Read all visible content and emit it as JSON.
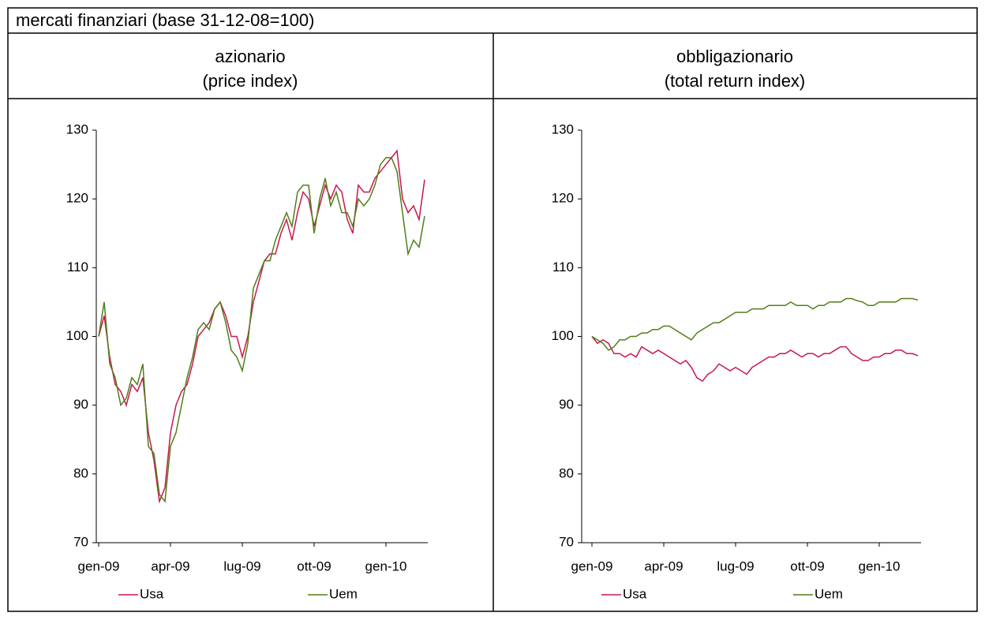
{
  "title": "mercati finanziari (base 31-12-08=100)",
  "chart_data": [
    {
      "type": "line",
      "title": "azionario",
      "subtitle": "(price index)",
      "categories": [
        "gen-09",
        null,
        null,
        null,
        null,
        null,
        null,
        null,
        null,
        null,
        null,
        null,
        null,
        "apr-09",
        null,
        null,
        null,
        null,
        null,
        null,
        null,
        null,
        null,
        null,
        null,
        null,
        "lug-09",
        null,
        null,
        null,
        null,
        null,
        null,
        null,
        null,
        null,
        null,
        null,
        null,
        "ott-09",
        null,
        null,
        null,
        null,
        null,
        null,
        null,
        null,
        null,
        null,
        null,
        null,
        "gen-10",
        null,
        null,
        null,
        null,
        null,
        null,
        null
      ],
      "ylim": [
        70,
        130
      ],
      "yticks": [
        70,
        80,
        90,
        100,
        110,
        120,
        130
      ],
      "series": [
        {
          "name": "Usa",
          "color": "#c8174f",
          "values": [
            100,
            103,
            97,
            93,
            92,
            90,
            93,
            92,
            94,
            86,
            82,
            76,
            78,
            86,
            90,
            92,
            93,
            96,
            100,
            101,
            102,
            104,
            105,
            103,
            100,
            100,
            97,
            100,
            105,
            108,
            111,
            112,
            112,
            115,
            117,
            114,
            118,
            121,
            120,
            116,
            119,
            122,
            120,
            122,
            121,
            117,
            115,
            122,
            121,
            121,
            123,
            124,
            125,
            126,
            127,
            120,
            118,
            119,
            117,
            122.8
          ]
        },
        {
          "name": "Uem",
          "color": "#4f7f17",
          "values": [
            100,
            105,
            96,
            94,
            90,
            91,
            94,
            93,
            96,
            84,
            83,
            77,
            76,
            84,
            86,
            90,
            94,
            97,
            101,
            102,
            101,
            104,
            105,
            102,
            98,
            97,
            95,
            99,
            107,
            109,
            111,
            111,
            114,
            116,
            118,
            116,
            121,
            122,
            122,
            115,
            120,
            123,
            119,
            121,
            118,
            118,
            116,
            120,
            119,
            120,
            122,
            125,
            126,
            126,
            124,
            118,
            112,
            114,
            113,
            117.5
          ]
        }
      ]
    },
    {
      "type": "line",
      "title": "obbligazionario",
      "subtitle": "(total return index)",
      "categories": [
        "gen-09",
        null,
        null,
        null,
        null,
        null,
        null,
        null,
        null,
        null,
        null,
        null,
        null,
        "apr-09",
        null,
        null,
        null,
        null,
        null,
        null,
        null,
        null,
        null,
        null,
        null,
        null,
        "lug-09",
        null,
        null,
        null,
        null,
        null,
        null,
        null,
        null,
        null,
        null,
        null,
        null,
        "ott-09",
        null,
        null,
        null,
        null,
        null,
        null,
        null,
        null,
        null,
        null,
        null,
        null,
        "gen-10",
        null,
        null,
        null,
        null,
        null,
        null,
        null
      ],
      "ylim": [
        70,
        130
      ],
      "yticks": [
        70,
        80,
        90,
        100,
        110,
        120,
        130
      ],
      "series": [
        {
          "name": "Usa",
          "color": "#c8174f",
          "values": [
            100,
            99,
            99.5,
            99,
            97.5,
            97.5,
            97,
            97.5,
            97,
            98.5,
            98,
            97.5,
            98,
            97.5,
            97,
            96.5,
            96,
            96.5,
            95.5,
            94,
            93.5,
            94.5,
            95,
            96,
            95.5,
            95,
            95.5,
            95,
            94.5,
            95.5,
            96,
            96.5,
            97,
            97,
            97.5,
            97.5,
            98,
            97.5,
            97,
            97.5,
            97.5,
            97,
            97.5,
            97.5,
            98,
            98.5,
            98.5,
            97.5,
            97,
            96.5,
            96.5,
            97,
            97,
            97.5,
            97.5,
            98,
            98,
            97.5,
            97.5,
            97.2
          ]
        },
        {
          "name": "Uem",
          "color": "#4f7f17",
          "values": [
            100,
            99.5,
            99,
            98,
            98.5,
            99.5,
            99.5,
            100,
            100,
            100.5,
            100.5,
            101,
            101,
            101.5,
            101.5,
            101,
            100.5,
            100,
            99.5,
            100.5,
            101,
            101.5,
            102,
            102,
            102.5,
            103,
            103.5,
            103.5,
            103.5,
            104,
            104,
            104,
            104.5,
            104.5,
            104.5,
            104.5,
            105,
            104.5,
            104.5,
            104.5,
            104,
            104.5,
            104.5,
            105,
            105,
            105,
            105.5,
            105.5,
            105.2,
            105,
            104.5,
            104.5,
            105,
            105,
            105,
            105,
            105.5,
            105.5,
            105.5,
            105.3
          ]
        }
      ]
    }
  ]
}
